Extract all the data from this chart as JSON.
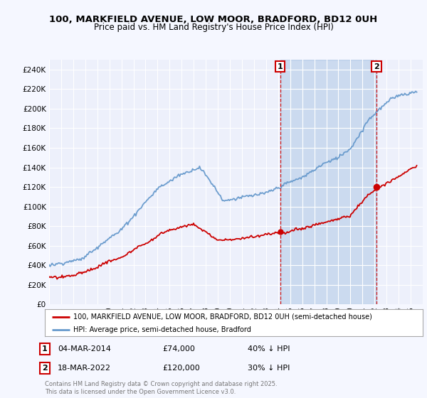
{
  "title": "100, MARKFIELD AVENUE, LOW MOOR, BRADFORD, BD12 0UH",
  "subtitle": "Price paid vs. HM Land Registry's House Price Index (HPI)",
  "red_color": "#cc0000",
  "blue_color": "#6699cc",
  "blue_fill_color": "#ddeeff",
  "background_color": "#f5f7ff",
  "plot_bg_color": "#edf0fb",
  "vline_color": "#cc0000",
  "transaction1_date": "04-MAR-2014",
  "transaction1_price": 74000,
  "transaction1_note": "40% ↓ HPI",
  "transaction1_year": 2014.17,
  "transaction2_date": "18-MAR-2022",
  "transaction2_price": 120000,
  "transaction2_note": "30% ↓ HPI",
  "transaction2_year": 2022.17,
  "legend_property": "100, MARKFIELD AVENUE, LOW MOOR, BRADFORD, BD12 0UH (semi-detached house)",
  "legend_hpi": "HPI: Average price, semi-detached house, Bradford",
  "footer": "Contains HM Land Registry data © Crown copyright and database right 2025.\nThis data is licensed under the Open Government Licence v3.0.",
  "label1": "1",
  "label2": "2",
  "ylim_max": 250000,
  "yticks": [
    0,
    20000,
    40000,
    60000,
    80000,
    100000,
    120000,
    140000,
    160000,
    180000,
    200000,
    220000,
    240000
  ]
}
